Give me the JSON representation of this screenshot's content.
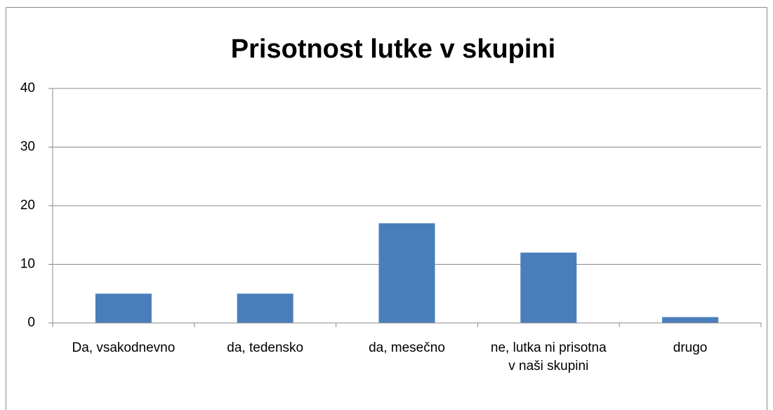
{
  "chart_data": {
    "type": "bar",
    "title": "Prisotnost lutke v skupini",
    "categories": [
      "Da, vsakodnevno",
      "da, tedensko",
      "da, mesečno",
      "ne, lutka ni prisotna v naši skupini",
      "drugo"
    ],
    "values": [
      5,
      5,
      17,
      12,
      1
    ],
    "color": "#4a7ebb",
    "ylim": [
      0,
      40
    ],
    "yticks": [
      0,
      10,
      20,
      30,
      40
    ],
    "grid": true
  }
}
